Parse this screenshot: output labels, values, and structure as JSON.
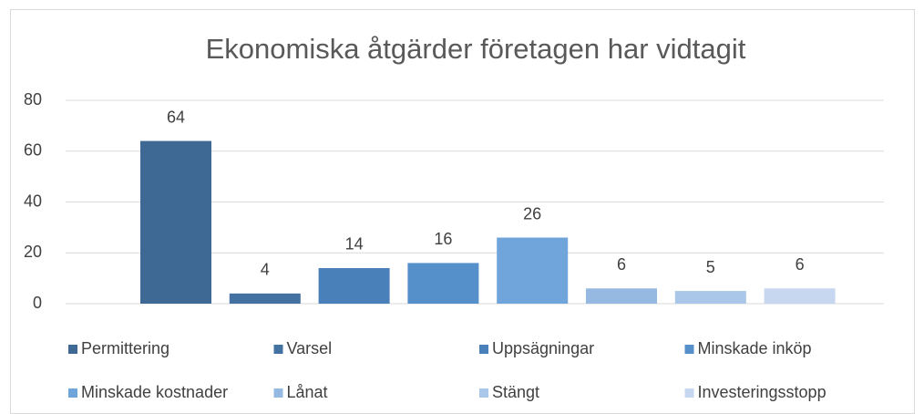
{
  "chart_data": {
    "type": "bar",
    "title": "Ekonomiska åtgärder företagen har vidtagit",
    "categories": [
      null
    ],
    "series": [
      {
        "name": "Permittering",
        "color": "#3e6994",
        "values": [
          64
        ]
      },
      {
        "name": "Varsel",
        "color": "#4271a2",
        "values": [
          4
        ]
      },
      {
        "name": "Uppsägningar",
        "color": "#4a80b9",
        "values": [
          14
        ]
      },
      {
        "name": "Minskade inköp",
        "color": "#5590cb",
        "values": [
          16
        ]
      },
      {
        "name": "Minskade kostnader",
        "color": "#6fa5db",
        "values": [
          26
        ]
      },
      {
        "name": "Lånat",
        "color": "#96b9e2",
        "values": [
          6
        ]
      },
      {
        "name": "Stängt",
        "color": "#aac6e8",
        "values": [
          5
        ]
      },
      {
        "name": "Investeringsstopp",
        "color": "#c6d7ef",
        "values": [
          6
        ]
      }
    ],
    "ylim": [
      0,
      80
    ],
    "yticks": [
      0,
      20,
      40,
      60,
      80
    ],
    "grid": true,
    "legend": "bottom"
  }
}
